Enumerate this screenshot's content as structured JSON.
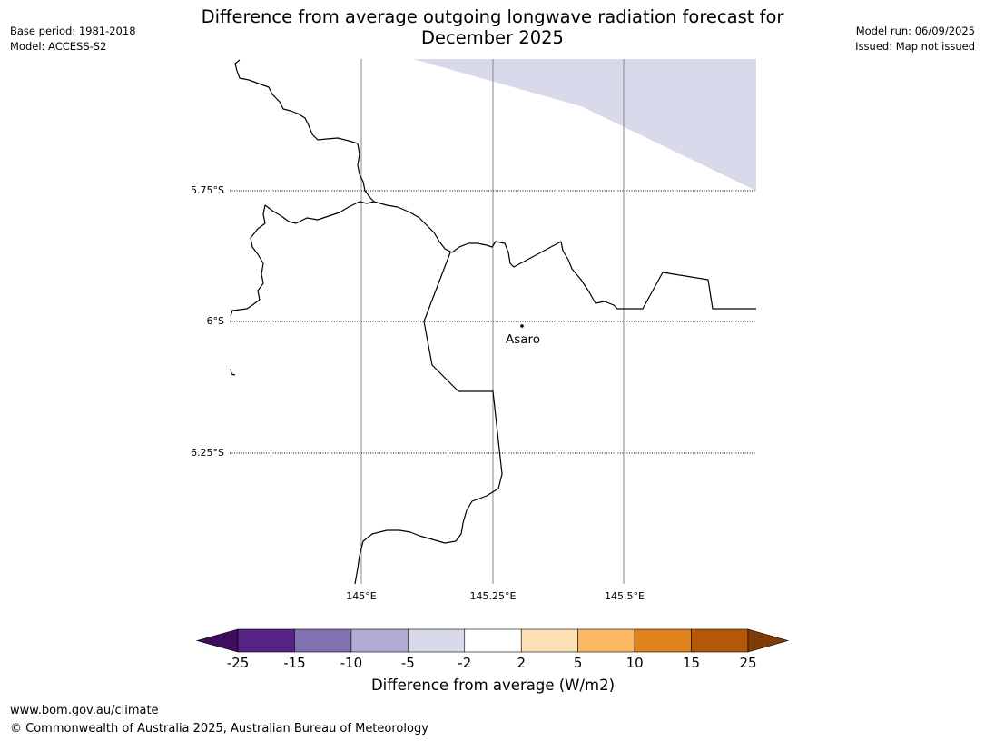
{
  "header": {
    "base_period": "Base period: 1981-2018",
    "model": "Model: ACCESS-S2",
    "title_line1": "Difference from average outgoing longwave radiation forecast for",
    "title_line2": "December 2025",
    "model_run": "Model run: 06/09/2025",
    "issued": "Issued: Map not issued"
  },
  "map": {
    "lat_labels": [
      "5.75°S",
      "6°S",
      "6.25°S"
    ],
    "lon_labels": [
      "145°E",
      "145.25°E",
      "145.5°E"
    ],
    "place_name": "Asaro",
    "anomaly_fill_color": "#d8d9ea",
    "coastline_color": "#000000"
  },
  "colorbar": {
    "title": "Difference from average (W/m2)",
    "ticks": [
      "-25",
      "-15",
      "-10",
      "-5",
      "-2",
      "2",
      "5",
      "10",
      "15",
      "25"
    ],
    "colors": [
      "#3f0d5e",
      "#582387",
      "#8072b0",
      "#b2aad2",
      "#d8d9ea",
      "#ffffff",
      "#fde0b3",
      "#fbb762",
      "#e0821b",
      "#b35807",
      "#7f3b08"
    ]
  },
  "footer": {
    "url": "www.bom.gov.au/climate",
    "copyright": "© Commonwealth of Australia 2025, Australian Bureau of Meteorology"
  }
}
